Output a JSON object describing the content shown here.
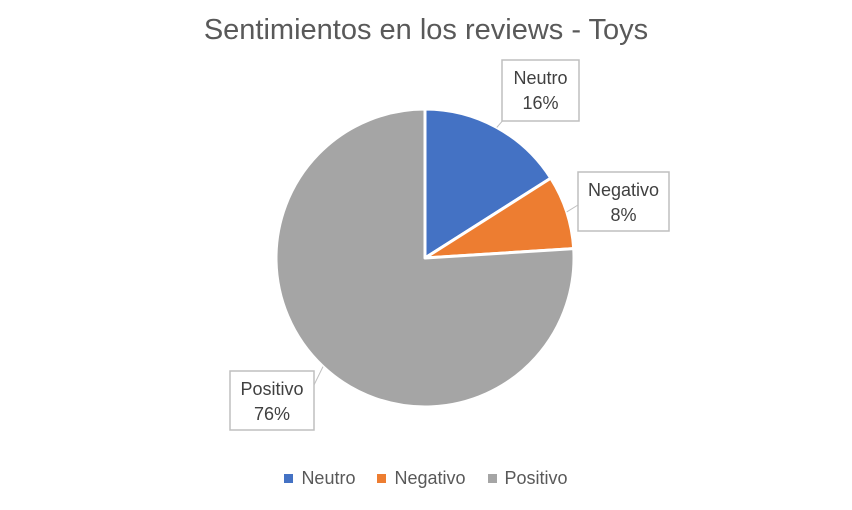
{
  "chart_data": {
    "type": "pie",
    "title": "Sentimientos en los reviews - Toys",
    "categories": [
      "Neutro",
      "Negativo",
      "Positivo"
    ],
    "values": [
      16,
      8,
      76
    ],
    "value_labels": [
      "16%",
      "8%",
      "76%"
    ],
    "unit": "%",
    "colors": [
      "#4472C4",
      "#ED7D31",
      "#A5A5A5"
    ],
    "legend_position": "bottom"
  }
}
